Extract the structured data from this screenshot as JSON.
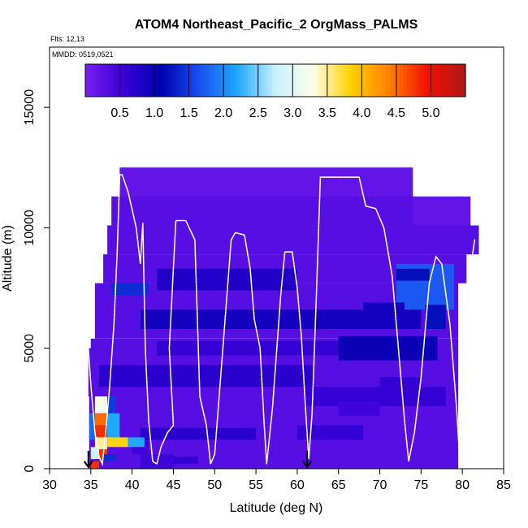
{
  "chart_data": {
    "type": "heatmap",
    "title": "ATOM4 Northeast_Pacific_2 OrgMass_PALMS",
    "flights_note": "Flts: 12,13",
    "date_note": "MMDD: 0519,0521",
    "xlabel": "Latitude (deg N)",
    "ylabel": "Altitude (m)",
    "xlim": [
      30,
      85
    ],
    "ylim": [
      0,
      17500
    ],
    "x_ticks": [
      "30",
      "35",
      "40",
      "45",
      "50",
      "55",
      "60",
      "65",
      "70",
      "75",
      "80",
      "85"
    ],
    "y_ticks": [
      "0",
      "5000",
      "10000",
      "15000"
    ],
    "colorbar": {
      "range": [
        0,
        5.5
      ],
      "tick_labels": [
        "0.5",
        "1.0",
        "1.5",
        "2.0",
        "2.5",
        "3.0",
        "3.5",
        "4.0",
        "4.5",
        "5.0"
      ],
      "tick_values": [
        0.5,
        1.0,
        1.5,
        2.0,
        2.5,
        3.0,
        3.5,
        4.0,
        4.5,
        5.0
      ],
      "colors": [
        "#7a1ff0",
        "#3a00d8",
        "#0000b0",
        "#1a50f0",
        "#20a8ff",
        "#c8f0ff",
        "#ffffe8",
        "#ffd000",
        "#ff8000",
        "#f01000",
        "#b01818"
      ]
    },
    "arrow_markers_lat": [
      34.7,
      61.2
    ],
    "background_value": 0.3,
    "cells": [
      {
        "lat": [
          38.5,
          74
        ],
        "alt": [
          11300,
          12500
        ],
        "v": 0.2
      },
      {
        "lat": [
          74,
          81
        ],
        "alt": [
          10100,
          11300
        ],
        "v": 0.2
      },
      {
        "lat": [
          43,
          60
        ],
        "alt": [
          7400,
          8300
        ],
        "v": 0.8
      },
      {
        "lat": [
          41,
          75
        ],
        "alt": [
          5800,
          6600
        ],
        "v": 0.9
      },
      {
        "lat": [
          43,
          68
        ],
        "alt": [
          4700,
          5300
        ],
        "v": 0.6
      },
      {
        "lat": [
          65,
          77
        ],
        "alt": [
          4500,
          5500
        ],
        "v": 1.0
      },
      {
        "lat": [
          36,
          62
        ],
        "alt": [
          3400,
          4300
        ],
        "v": 0.7
      },
      {
        "lat": [
          61,
          78
        ],
        "alt": [
          2600,
          3400
        ],
        "v": 0.6
      },
      {
        "lat": [
          41,
          55
        ],
        "alt": [
          1200,
          1700
        ],
        "v": 0.7
      },
      {
        "lat": [
          60,
          68
        ],
        "alt": [
          1200,
          1800
        ],
        "v": 0.6
      },
      {
        "lat": [
          44,
          48
        ],
        "alt": [
          200,
          500
        ],
        "v": 0.6
      },
      {
        "lat": [
          41,
          45
        ],
        "alt": [
          0,
          600
        ],
        "v": 0.5
      },
      {
        "lat": [
          40,
          42
        ],
        "alt": [
          600,
          1200
        ],
        "v": 0.5
      },
      {
        "lat": [
          65,
          70
        ],
        "alt": [
          2200,
          2800
        ],
        "v": 0.5
      },
      {
        "lat": [
          70,
          75
        ],
        "alt": [
          3200,
          3800
        ],
        "v": 0.6
      },
      {
        "lat": [
          37.5,
          42
        ],
        "alt": [
          7200,
          7700
        ],
        "v": 1.4
      },
      {
        "lat": [
          72,
          79
        ],
        "alt": [
          6600,
          8500
        ],
        "v": 1.7
      },
      {
        "lat": [
          72,
          76
        ],
        "alt": [
          7800,
          8300
        ],
        "v": 1.2
      },
      {
        "lat": [
          75.5,
          78
        ],
        "alt": [
          5800,
          6800
        ],
        "v": 1.2
      },
      {
        "lat": [
          68,
          73
        ],
        "alt": [
          6400,
          6900
        ],
        "v": 0.9
      },
      {
        "lat": [
          35.5,
          37
        ],
        "alt": [
          2300,
          3000
        ],
        "v": 3.2
      },
      {
        "lat": [
          35.5,
          37
        ],
        "alt": [
          1800,
          2300
        ],
        "v": 4.5
      },
      {
        "lat": [
          35.5,
          37
        ],
        "alt": [
          1300,
          1800
        ],
        "v": 4.8
      },
      {
        "lat": [
          35.5,
          37
        ],
        "alt": [
          800,
          1300
        ],
        "v": 3.5
      },
      {
        "lat": [
          36,
          37
        ],
        "alt": [
          300,
          800
        ],
        "v": 4.8
      },
      {
        "lat": [
          35,
          36
        ],
        "alt": [
          0,
          300
        ],
        "v": 4.8
      },
      {
        "lat": [
          37,
          38
        ],
        "alt": [
          2300,
          3000
        ],
        "v": 1.5
      },
      {
        "lat": [
          37,
          38.5
        ],
        "alt": [
          1300,
          2300
        ],
        "v": 2.2
      },
      {
        "lat": [
          37,
          39.5
        ],
        "alt": [
          900,
          1300
        ],
        "v": 3.8
      },
      {
        "lat": [
          39.5,
          41.5
        ],
        "alt": [
          900,
          1300
        ],
        "v": 2.2
      },
      {
        "lat": [
          34.8,
          35.5
        ],
        "alt": [
          1200,
          2300
        ],
        "v": 1.8
      },
      {
        "lat": [
          35,
          36
        ],
        "alt": [
          400,
          900
        ],
        "v": 2.8
      },
      {
        "lat": [
          36.5,
          38
        ],
        "alt": [
          300,
          600
        ],
        "v": 1.4
      }
    ],
    "flight_track": [
      [
        34.7,
        5000
      ],
      [
        35.0,
        3500
      ],
      [
        35.5,
        1500
      ],
      [
        36.0,
        500
      ],
      [
        36.4,
        200
      ],
      [
        36.8,
        1500
      ],
      [
        37.3,
        3500
      ],
      [
        37.8,
        6000
      ],
      [
        38.2,
        9000
      ],
      [
        38.5,
        12200
      ],
      [
        38.8,
        12200
      ],
      [
        39.5,
        11500
      ],
      [
        40.5,
        10000
      ],
      [
        41.0,
        8500
      ],
      [
        41.3,
        10200
      ],
      [
        41.6,
        5000
      ],
      [
        42.0,
        2000
      ],
      [
        42.5,
        300
      ],
      [
        43.0,
        200
      ],
      [
        43.5,
        900
      ],
      [
        44.3,
        1500
      ],
      [
        45.0,
        1800
      ],
      [
        44.5,
        5000
      ],
      [
        45.3,
        10300
      ],
      [
        46.5,
        10300
      ],
      [
        47.6,
        9500
      ],
      [
        48.2,
        3000
      ],
      [
        49.0,
        1800
      ],
      [
        49.5,
        200
      ],
      [
        50.0,
        600
      ],
      [
        51.0,
        5000
      ],
      [
        52.0,
        9500
      ],
      [
        52.5,
        9800
      ],
      [
        53.6,
        9700
      ],
      [
        54.3,
        8300
      ],
      [
        54.8,
        6200
      ],
      [
        55.5,
        5000
      ],
      [
        56.0,
        1800
      ],
      [
        56.3,
        200
      ],
      [
        57.0,
        2500
      ],
      [
        58.0,
        7200
      ],
      [
        58.5,
        9000
      ],
      [
        59.4,
        9000
      ],
      [
        60.0,
        7500
      ],
      [
        60.5,
        5500
      ],
      [
        61.0,
        2500
      ],
      [
        61.4,
        400
      ],
      [
        61.8,
        2300
      ],
      [
        62.3,
        7000
      ],
      [
        62.8,
        12100
      ],
      [
        67.5,
        12100
      ],
      [
        68.3,
        10900
      ],
      [
        69.5,
        10800
      ],
      [
        70.5,
        10000
      ],
      [
        71.5,
        8000
      ],
      [
        72.5,
        4000
      ],
      [
        73.0,
        2000
      ],
      [
        73.5,
        300
      ],
      [
        74.2,
        1500
      ],
      [
        75.0,
        3800
      ],
      [
        76.0,
        7700
      ],
      [
        76.8,
        8800
      ],
      [
        77.5,
        8500
      ],
      [
        78.5,
        6000
      ],
      [
        79.3,
        2500
      ],
      [
        79.7,
        300
      ],
      [
        80.0,
        2000
      ],
      [
        80.6,
        6000
      ],
      [
        81.1,
        8600
      ],
      [
        81.5,
        9500
      ]
    ]
  }
}
